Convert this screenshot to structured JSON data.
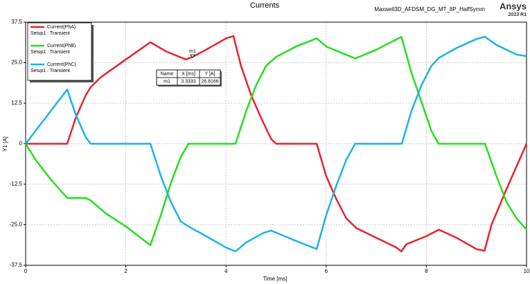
{
  "chart_data": {
    "type": "line",
    "title": "Currents",
    "project": "Maxwell3D_AFDSM_DG_MT_8P_HalfSymm",
    "brand": "Ansys",
    "version": "2023 R1",
    "xlabel": "Time [ms]",
    "ylabel": "Y1 [A]",
    "xlim": [
      0,
      10
    ],
    "ylim": [
      -37.5,
      37.5
    ],
    "xticks": [
      0,
      2,
      4,
      6,
      8,
      10
    ],
    "yticks": [
      37.5,
      {
        "value": 25,
        "label": "25.0"
      },
      12.5,
      0,
      -12.5,
      {
        "value": -25,
        "label": "-25.0"
      },
      -37.5
    ],
    "grid": true,
    "legend": "top-left",
    "legend_subtitle": "Setup1 : Transient",
    "series": [
      {
        "name": "Current(PhA)",
        "color": "#e8212b",
        "x": [
          0,
          0.83,
          1.0,
          1.2,
          1.3,
          1.5,
          2.0,
          2.49,
          2.8,
          3.2,
          3.3333,
          3.6,
          4.0,
          4.15,
          4.3,
          4.5,
          4.7,
          4.9,
          5.0,
          5.81,
          6.0,
          6.2,
          6.4,
          6.6,
          7.0,
          7.4,
          7.5,
          7.6,
          8.0,
          8.25,
          8.6,
          9.0,
          9.16,
          9.3,
          9.6,
          9.8,
          10
        ],
        "values": [
          0,
          0,
          8,
          15,
          17.5,
          20.5,
          26,
          31.3,
          28.5,
          26,
          26.8,
          29,
          32.5,
          33.2,
          24,
          15,
          8,
          1.5,
          0,
          0,
          -10,
          -17,
          -23,
          -26,
          -29,
          -32,
          -33.2,
          -31,
          -28.5,
          -26.5,
          -29,
          -32.5,
          -33,
          -25,
          -14,
          -7,
          0
        ]
      },
      {
        "name": "Current(PhB)",
        "color": "#22e01a",
        "x": [
          0,
          0.2,
          0.5,
          0.83,
          1.2,
          1.3,
          1.6,
          2.0,
          2.49,
          2.7,
          2.9,
          3.1,
          3.25,
          4.19,
          4.4,
          4.6,
          4.8,
          5.0,
          5.4,
          5.81,
          6.0,
          6.58,
          7.0,
          7.5,
          7.7,
          7.9,
          8.1,
          8.24,
          9.17,
          9.4,
          9.6,
          9.8,
          10
        ],
        "values": [
          0,
          -5,
          -11,
          -16.7,
          -16.7,
          -17.5,
          -21.5,
          -25.5,
          -31.3,
          -22,
          -12,
          -4,
          0,
          0,
          10,
          18,
          24,
          26.8,
          30,
          32.5,
          30,
          26.3,
          29,
          33,
          22,
          13,
          4,
          0,
          0,
          -10,
          -18,
          -23,
          -26.5
        ]
      },
      {
        "name": "Current(PhC)",
        "color": "#1ab2e8",
        "x": [
          0,
          0.83,
          1.0,
          1.2,
          1.3,
          2.49,
          2.7,
          2.9,
          3.1,
          3.25,
          3.6,
          4.0,
          4.19,
          4.4,
          4.75,
          4.9,
          5.4,
          5.81,
          6.0,
          6.2,
          6.4,
          6.58,
          7.51,
          7.7,
          7.9,
          8.1,
          8.25,
          8.6,
          9.0,
          9.17,
          9.4,
          9.8,
          10
        ],
        "values": [
          0,
          16.7,
          9,
          2,
          0,
          0,
          -10,
          -18,
          -24,
          -25.5,
          -28.5,
          -32,
          -33.2,
          -30.5,
          -27.5,
          -26.8,
          -30,
          -32.5,
          -22,
          -13,
          -5,
          0,
          0,
          10,
          18,
          24,
          26.5,
          29.5,
          32.3,
          33,
          30.5,
          27.5,
          27
        ]
      }
    ],
    "markers": [
      {
        "name": "m1",
        "x": 3.3333,
        "y": 26.8166
      }
    ],
    "marker_table": {
      "headers": [
        "Name",
        "X [ms]",
        "Y [A]"
      ]
    }
  }
}
